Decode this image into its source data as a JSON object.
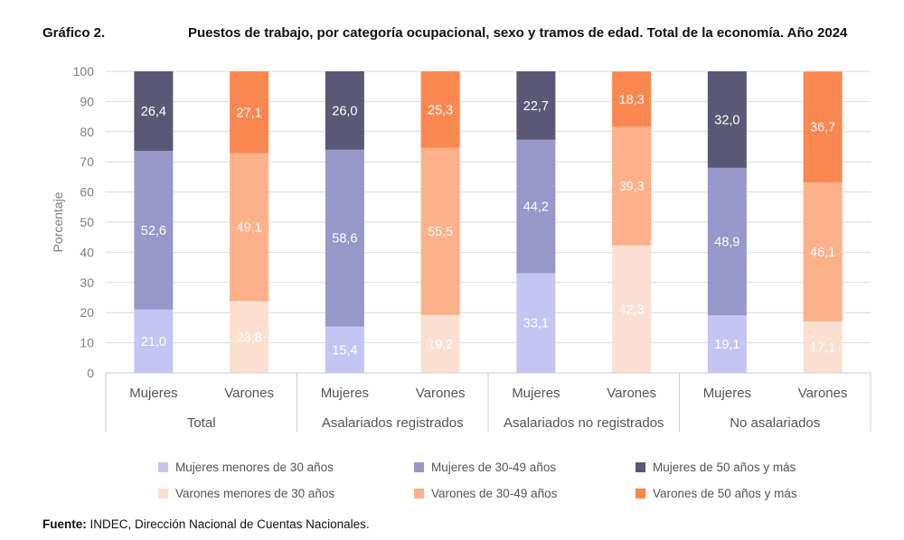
{
  "figure_label": "Gráfico 2.",
  "title": "Puestos de trabajo, por categoría ocupacional, sexo y tramos de edad. Total de la economía. Año 2024",
  "source_label": "Fuente:",
  "source_text": "INDEC, Dirección Nacional de Cuentas Nacionales.",
  "colors": {
    "mujeres_menores_30": "#c5c5f3",
    "mujeres_30_49": "#9897c9",
    "mujeres_50_mas": "#5a5876",
    "varones_menores_30": "#fbe0d2",
    "varones_30_49": "#fcb18b",
    "varones_50_mas": "#fb8750",
    "grid": "#dcdcdc",
    "axis_text": "#7f7f7f"
  },
  "chart_data": {
    "type": "bar",
    "stacked": true,
    "ylabel": "Porcentaje",
    "ylim": [
      0,
      100
    ],
    "yticks": [
      0,
      10,
      20,
      30,
      40,
      50,
      60,
      70,
      80,
      90,
      100
    ],
    "grid": true,
    "legend_position": "bottom",
    "groups": [
      "Total",
      "Asalariados registrados",
      "Asalariados no registrados",
      "No asalariados"
    ],
    "bars": [
      {
        "group": "Total",
        "label": "Mujeres",
        "sex": "mujeres",
        "values": [
          21.0,
          52.6,
          26.4
        ],
        "labels": [
          "21,0",
          "52,6",
          "26,4"
        ]
      },
      {
        "group": "Total",
        "label": "Varones",
        "sex": "varones",
        "values": [
          23.8,
          49.1,
          27.1
        ],
        "labels": [
          "23,8",
          "49,1",
          "27,1"
        ]
      },
      {
        "group": "Asalariados registrados",
        "label": "Mujeres",
        "sex": "mujeres",
        "values": [
          15.4,
          58.6,
          26.0
        ],
        "labels": [
          "15,4",
          "58,6",
          "26,0"
        ]
      },
      {
        "group": "Asalariados registrados",
        "label": "Varones",
        "sex": "varones",
        "values": [
          19.2,
          55.5,
          25.3
        ],
        "labels": [
          "19,2",
          "55,5",
          "25,3"
        ]
      },
      {
        "group": "Asalariados no registrados",
        "label": "Mujeres",
        "sex": "mujeres",
        "values": [
          33.1,
          44.2,
          22.7
        ],
        "labels": [
          "33,1",
          "44,2",
          "22,7"
        ]
      },
      {
        "group": "Asalariados no registrados",
        "label": "Varones",
        "sex": "varones",
        "values": [
          42.3,
          39.3,
          18.3
        ],
        "labels": [
          "42,3",
          "39,3",
          "18,3"
        ]
      },
      {
        "group": "No asalariados",
        "label": "Mujeres",
        "sex": "mujeres",
        "values": [
          19.1,
          48.9,
          32.0
        ],
        "labels": [
          "19,1",
          "48,9",
          "32,0"
        ]
      },
      {
        "group": "No asalariados",
        "label": "Varones",
        "sex": "varones",
        "values": [
          17.1,
          46.1,
          36.7
        ],
        "labels": [
          "17,1",
          "46,1",
          "36,7"
        ]
      }
    ],
    "series": [
      {
        "name": "Mujeres menores de 30 años",
        "key": "mujeres_menores_30"
      },
      {
        "name": "Mujeres de 30-49 años",
        "key": "mujeres_30_49"
      },
      {
        "name": "Mujeres de 50 años y más",
        "key": "mujeres_50_mas"
      },
      {
        "name": "Varones menores de 30 años",
        "key": "varones_menores_30"
      },
      {
        "name": "Varones de 30-49 años",
        "key": "varones_30_49"
      },
      {
        "name": "Varones de 50 años y más",
        "key": "varones_50_mas"
      }
    ]
  }
}
